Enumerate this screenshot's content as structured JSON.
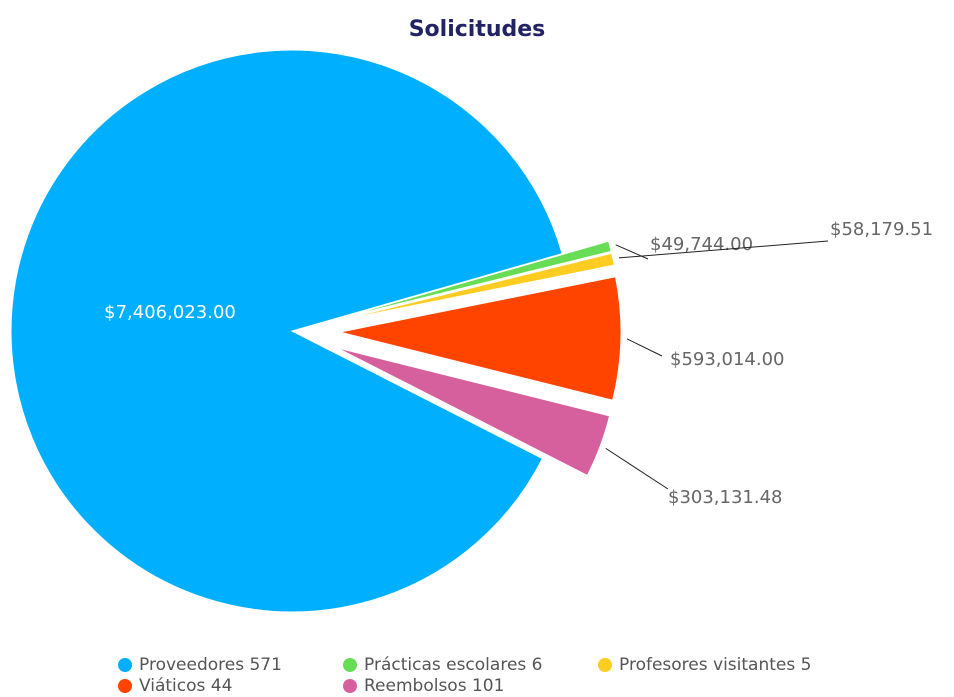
{
  "chart_data": {
    "type": "pie",
    "title": "Solicitudes",
    "categories": [
      "Proveedores 571",
      "Prácticas escolares 6",
      "Profesores visitantes 5",
      "Viáticos 44",
      "Reembolsos 101"
    ],
    "values": [
      7406023.0,
      49744.0,
      58179.51,
      593014.0,
      303131.48
    ],
    "value_labels": [
      "$7,406,023.00",
      "$49,744.00",
      "$58,179.51",
      "$593,014.00",
      "$303,131.48"
    ],
    "colors": [
      "#00b0ff",
      "#66dd55",
      "#ffcc22",
      "#ff4400",
      "#d6609e"
    ]
  }
}
